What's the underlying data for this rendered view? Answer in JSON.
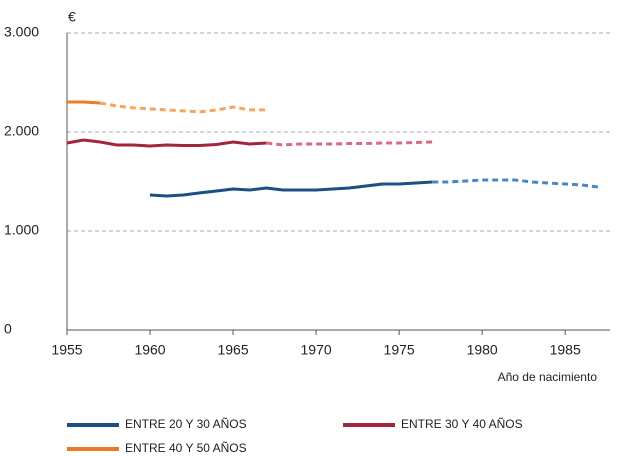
{
  "chart_data": {
    "type": "line",
    "y_unit": "€",
    "xlabel": "Año de nacimiento",
    "xlim": [
      1955,
      1988
    ],
    "xticks": [
      1955,
      1960,
      1965,
      1970,
      1975,
      1980,
      1985
    ],
    "ylim": [
      0,
      3000
    ],
    "yticks": [
      0,
      {
        "value": 1000,
        "label": "1.000"
      },
      {
        "value": 2000,
        "label": "2.000"
      },
      {
        "value": 3000,
        "label": "3.000"
      }
    ],
    "grid": true,
    "grid_style": "dashed",
    "legend": "bottom",
    "series": [
      {
        "name": "ENTRE 20 Y  30 AÑOS",
        "color": "#1b4f86",
        "dash_color": "#4a86c5",
        "dash_from": 1977,
        "x": [
          1960,
          1961,
          1962,
          1963,
          1964,
          1965,
          1966,
          1967,
          1968,
          1969,
          1970,
          1971,
          1972,
          1973,
          1974,
          1975,
          1976,
          1977,
          1978,
          1979,
          1980,
          1981,
          1982,
          1983,
          1984,
          1985,
          1986,
          1987
        ],
        "values": [
          1364,
          1354,
          1364,
          1385,
          1404,
          1424,
          1414,
          1434,
          1414,
          1414,
          1414,
          1424,
          1434,
          1455,
          1475,
          1475,
          1485,
          1495,
          1495,
          1505,
          1515,
          1515,
          1515,
          1495,
          1485,
          1475,
          1465,
          1444
        ]
      },
      {
        "name": "ENTRE 30 Y  40 AÑOS",
        "color": "#a3243e",
        "dash_color": "#d76b82",
        "dash_from": 1967,
        "x": [
          1955,
          1956,
          1957,
          1958,
          1959,
          1960,
          1961,
          1962,
          1963,
          1964,
          1965,
          1966,
          1967,
          1968,
          1969,
          1970,
          1971,
          1972,
          1973,
          1974,
          1975,
          1976,
          1977
        ],
        "values": [
          1889,
          1919,
          1899,
          1869,
          1869,
          1859,
          1869,
          1864,
          1864,
          1874,
          1899,
          1879,
          1889,
          1869,
          1879,
          1879,
          1879,
          1884,
          1884,
          1889,
          1889,
          1894,
          1899
        ]
      },
      {
        "name": "ENTRE 40 Y 50 AÑOS",
        "color": "#ec7a28",
        "dash_color": "#f5a55e",
        "dash_from": 1957,
        "x": [
          1955,
          1956,
          1957,
          1958,
          1959,
          1960,
          1961,
          1962,
          1963,
          1964,
          1965,
          1966,
          1967
        ],
        "values": [
          2303,
          2303,
          2293,
          2263,
          2243,
          2233,
          2223,
          2213,
          2203,
          2223,
          2253,
          2223,
          2223
        ]
      }
    ]
  }
}
